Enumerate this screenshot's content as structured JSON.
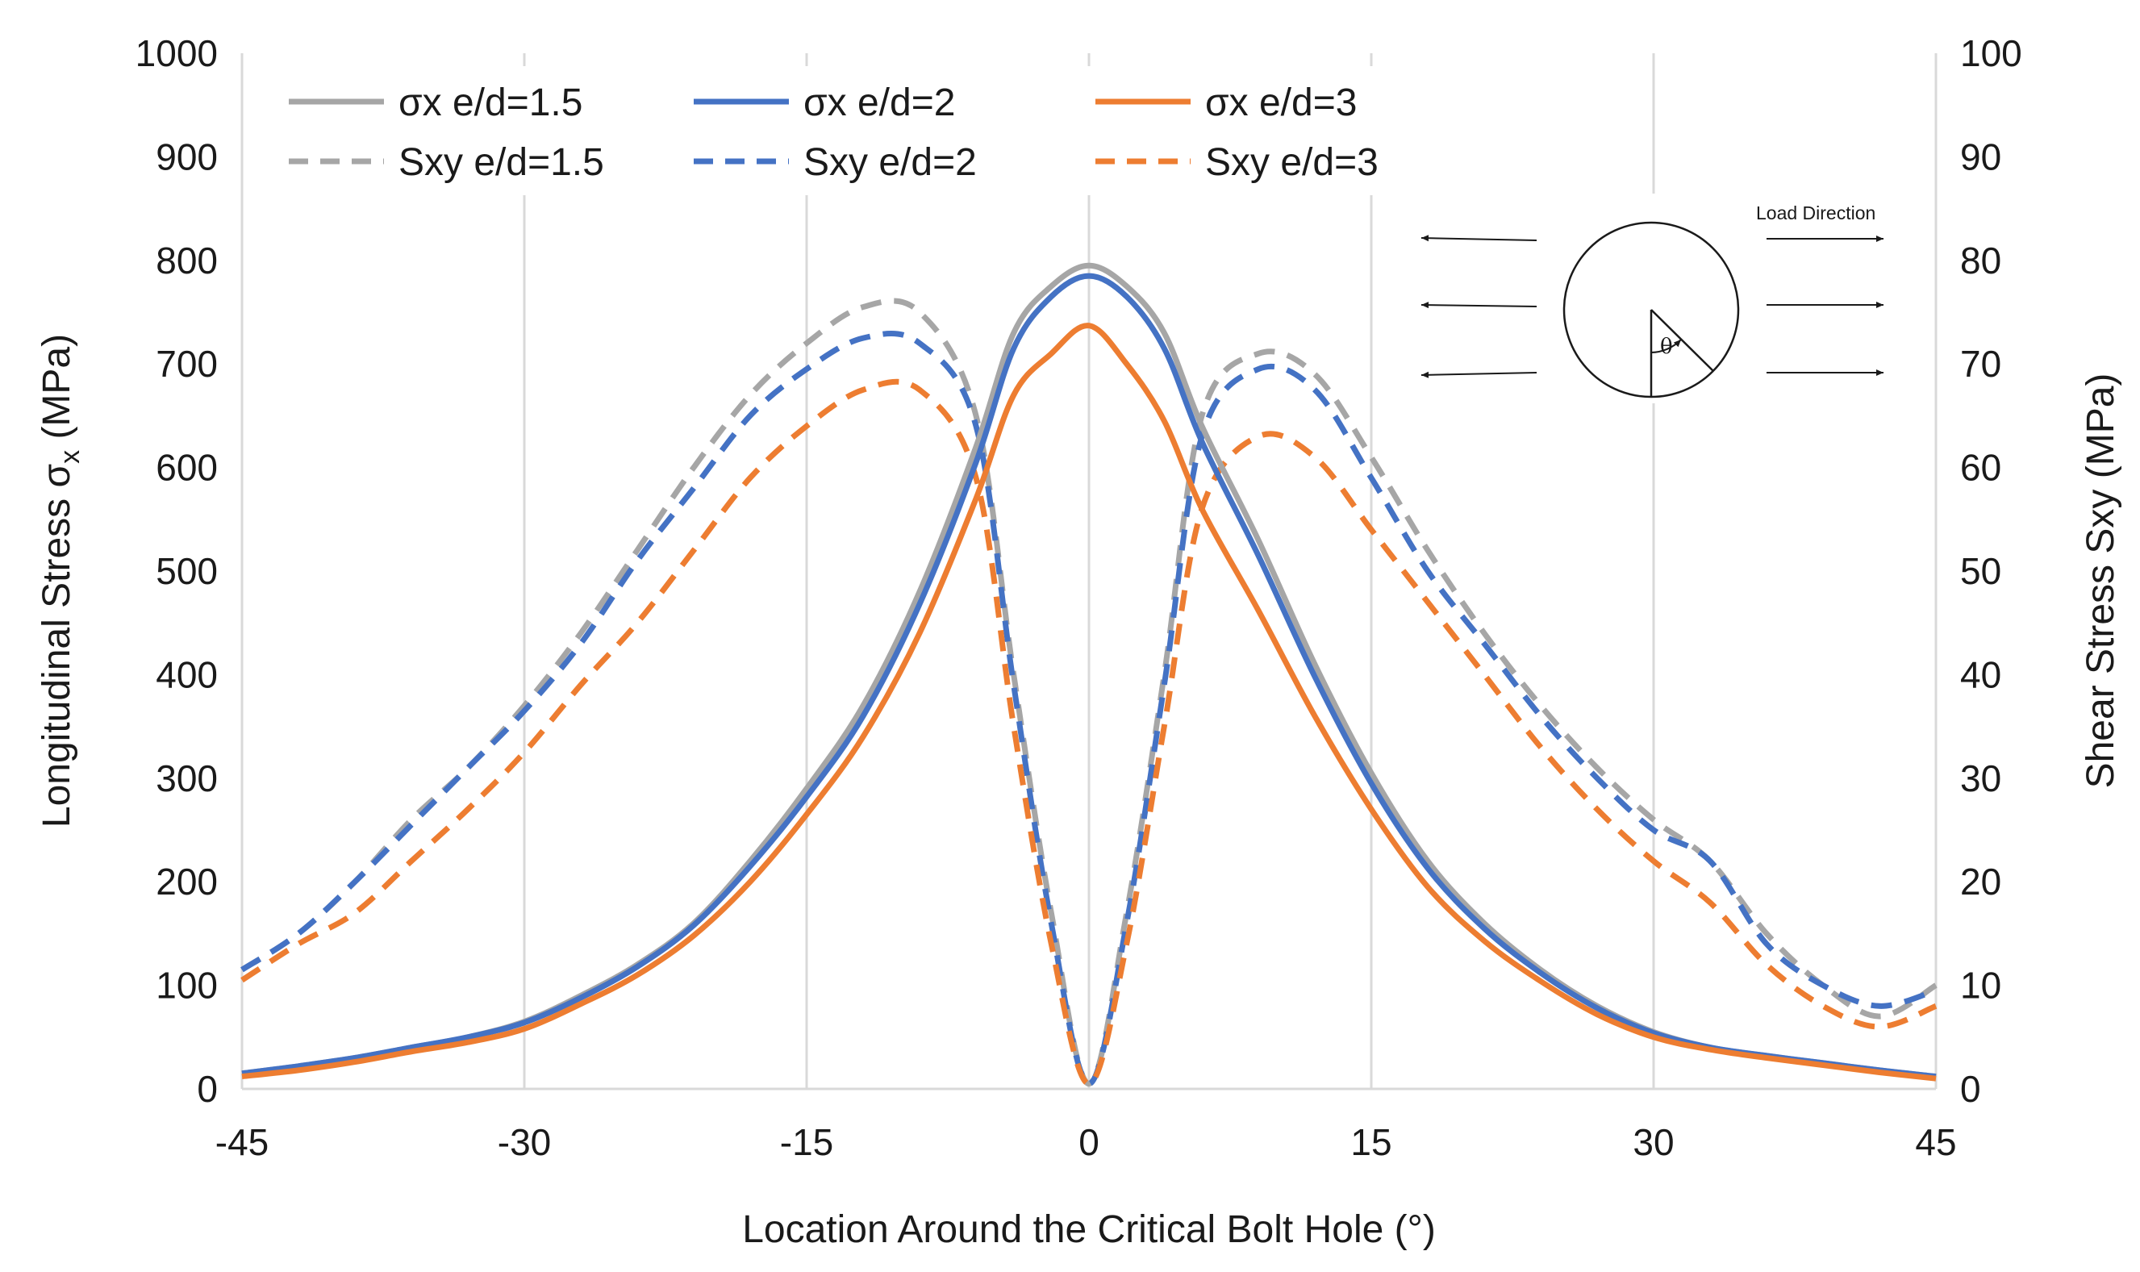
{
  "chart_data": {
    "type": "line",
    "title": "",
    "xlabel": "Location Around the Critical Bolt Hole (°)",
    "ylabel_left": "Longitudinal Stress σ",
    "ylabel_left_subscript": "x",
    "ylabel_left_unit": " (MPa)",
    "ylabel_right": "Shear Stress Sxy (MPa)",
    "xlim": [
      -45,
      45
    ],
    "ylim_left": [
      0,
      1000
    ],
    "ylim_right": [
      0,
      100
    ],
    "x_ticks": [
      -45,
      -30,
      -15,
      0,
      15,
      30,
      45
    ],
    "y_ticks_left": [
      0,
      100,
      200,
      300,
      400,
      500,
      600,
      700,
      800,
      900,
      1000
    ],
    "y_ticks_right": [
      0,
      10,
      20,
      30,
      40,
      50,
      60,
      70,
      80,
      90,
      100
    ],
    "grid": "vertical",
    "legend_position": "top-left",
    "x": [
      -45,
      -42,
      -39,
      -36,
      -33,
      -30,
      -27,
      -24,
      -21,
      -18,
      -15,
      -12,
      -9,
      -6,
      -4,
      -2,
      0,
      2,
      4,
      6,
      9,
      12,
      15,
      18,
      21,
      24,
      27,
      30,
      33,
      36,
      39,
      42,
      45
    ],
    "series": [
      {
        "name": "σx e/d=1.5",
        "axis": "left",
        "style": "solid",
        "color": "#a6a6a6",
        "values": [
          15,
          22,
          30,
          40,
          50,
          65,
          90,
          120,
          160,
          220,
          290,
          370,
          480,
          620,
          730,
          775,
          795,
          775,
          730,
          640,
          530,
          410,
          305,
          220,
          160,
          115,
          80,
          55,
          40,
          32,
          25,
          18,
          12
        ]
      },
      {
        "name": "σx e/d=2",
        "axis": "left",
        "style": "solid",
        "color": "#4472c4",
        "values": [
          15,
          22,
          30,
          40,
          50,
          64,
          88,
          118,
          158,
          215,
          282,
          360,
          468,
          605,
          715,
          765,
          785,
          765,
          715,
          625,
          515,
          398,
          295,
          213,
          155,
          112,
          78,
          54,
          40,
          32,
          25,
          18,
          12
        ]
      },
      {
        "name": "σx e/d=3",
        "axis": "left",
        "style": "solid",
        "color": "#ed7d31",
        "values": [
          12,
          18,
          26,
          36,
          45,
          58,
          82,
          110,
          148,
          200,
          265,
          340,
          440,
          570,
          670,
          710,
          737,
          700,
          645,
          560,
          462,
          360,
          270,
          195,
          143,
          104,
          72,
          50,
          38,
          30,
          23,
          16,
          10
        ]
      },
      {
        "name": "Sxy e/d=1.5",
        "axis": "right",
        "style": "dashed",
        "color": "#a6a6a6",
        "values": [
          11.5,
          15,
          20,
          26,
          31,
          37,
          44,
          52,
          60,
          67,
          72,
          75.5,
          75,
          65,
          40,
          17,
          0.5,
          17,
          40,
          65,
          71,
          69,
          61,
          52,
          44,
          37,
          31,
          26,
          22,
          15,
          10,
          7,
          10
        ]
      },
      {
        "name": "Sxy e/d=2",
        "axis": "right",
        "style": "dashed",
        "color": "#4472c4",
        "values": [
          11.5,
          15,
          20,
          25.5,
          31,
          36.5,
          43,
          51,
          58,
          65,
          69.5,
          72.5,
          72,
          64,
          39,
          16,
          0.5,
          16,
          39,
          63,
          69.5,
          67.5,
          59,
          50,
          43,
          36,
          30,
          25,
          22,
          14,
          10,
          8,
          9.5
        ]
      },
      {
        "name": "Sxy e/d=3",
        "axis": "right",
        "style": "dashed",
        "color": "#ed7d31",
        "values": [
          10.5,
          14,
          17,
          22,
          27,
          32.5,
          39,
          45,
          52,
          59,
          64,
          67.5,
          67.5,
          59,
          35,
          14,
          0.5,
          14,
          35,
          56,
          63,
          61,
          54,
          47,
          40,
          33,
          27,
          22,
          18,
          12,
          8,
          6,
          8
        ]
      }
    ]
  },
  "legend": {
    "items": [
      {
        "label": "σx e/d=1.5",
        "color": "#a6a6a6",
        "style": "solid"
      },
      {
        "label": "σx e/d=2",
        "color": "#4472c4",
        "style": "solid"
      },
      {
        "label": "σx e/d=3",
        "color": "#ed7d31",
        "style": "solid"
      },
      {
        "label": "Sxy e/d=1.5",
        "color": "#a6a6a6",
        "style": "dashed"
      },
      {
        "label": "Sxy e/d=2",
        "color": "#4472c4",
        "style": "dashed"
      },
      {
        "label": "Sxy e/d=3",
        "color": "#ed7d31",
        "style": "dashed"
      }
    ]
  },
  "inset": {
    "load_direction_label": "Load Direction",
    "angle_label": "θ"
  },
  "colors": {
    "grid": "#d9d9d9",
    "text": "#1a1a1a",
    "background": "#ffffff"
  }
}
